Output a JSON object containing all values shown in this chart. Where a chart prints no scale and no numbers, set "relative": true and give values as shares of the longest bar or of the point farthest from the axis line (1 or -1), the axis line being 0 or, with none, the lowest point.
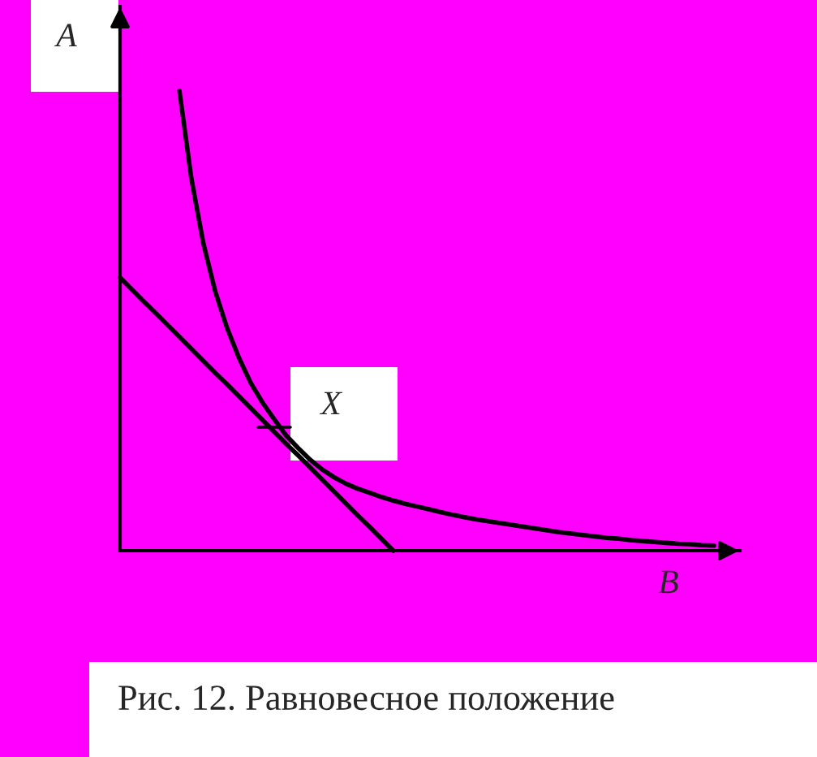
{
  "chart_data": {
    "type": "line",
    "relative": true,
    "xlabel": "B",
    "ylabel": "A",
    "annotations": [
      "X",
      "Рис. 12. Равновесное положение"
    ],
    "categories": [
      null,
      null,
      null,
      null,
      null,
      null,
      null,
      null,
      null,
      null,
      null,
      null,
      null,
      null,
      null,
      null,
      null,
      null,
      null,
      null,
      null,
      null,
      null,
      null,
      null,
      null,
      null,
      null,
      null,
      null,
      null,
      null,
      null,
      null,
      null,
      null,
      null,
      null,
      null,
      null,
      null,
      null,
      null,
      null,
      null,
      null,
      null,
      null,
      null,
      null,
      null
    ],
    "series": [
      {
        "color": "#000000",
        "values": [
          null,
          null,
          null,
          null,
          null,
          1.0,
          0.81,
          0.67,
          0.565,
          0.485,
          0.42,
          0.365,
          0.322,
          0.285,
          0.25,
          0.223,
          0.198,
          0.177,
          0.16,
          0.146,
          0.135,
          0.126,
          0.117,
          0.109,
          0.102,
          0.096,
          0.09,
          0.084,
          0.078,
          0.073,
          0.068,
          0.064,
          0.06,
          0.056,
          0.052,
          0.048,
          0.044,
          0.04,
          0.037,
          0.034,
          0.031,
          0.028,
          0.026,
          0.023,
          0.021,
          0.019,
          0.017,
          0.015,
          0.014,
          0.012,
          0.011
        ]
      },
      {
        "color": "#000000",
        "values": [
          0.594,
          0.568,
          0.542,
          0.517,
          0.491,
          0.465,
          0.439,
          0.413,
          0.387,
          0.362,
          0.336,
          0.31,
          0.284,
          0.258,
          0.232,
          0.207,
          0.181,
          0.155,
          0.129,
          0.103,
          0.077,
          0.052,
          0.026,
          0.0,
          null,
          null,
          null,
          null,
          null,
          null,
          null,
          null,
          null,
          null,
          null,
          null,
          null,
          null,
          null,
          null,
          null,
          null,
          null,
          null,
          null,
          null,
          null,
          null,
          null,
          null,
          null
        ]
      }
    ],
    "marker": "none",
    "line_style": "solid"
  }
}
